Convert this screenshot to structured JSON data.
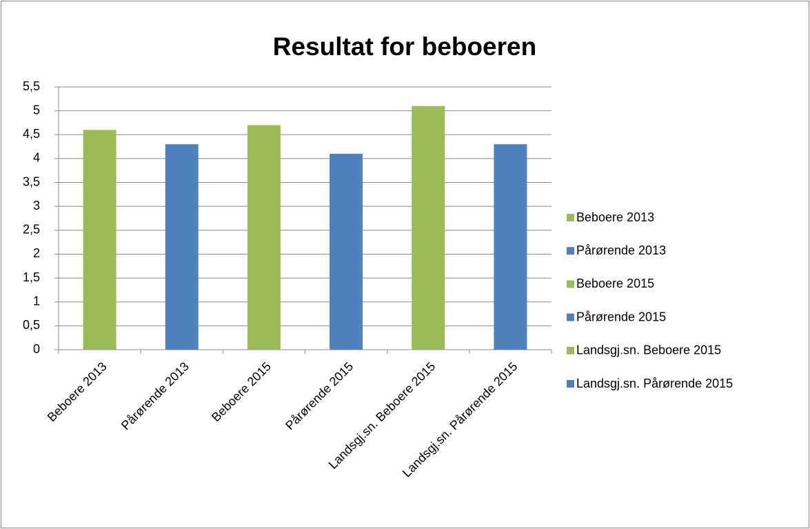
{
  "chart_data": {
    "type": "bar",
    "title": "Resultat for beboeren",
    "categories": [
      "Beboere 2013",
      "Pårørende 2013",
      "Beboere 2015",
      "Pårørende 2015",
      "Landsgj.sn. Beboere 2015",
      "Landsgj.sn. Pårørende 2015"
    ],
    "values": [
      4.6,
      4.3,
      4.7,
      4.1,
      5.1,
      4.3
    ],
    "colors": [
      "#9bbb59",
      "#4f81bd",
      "#9bbb59",
      "#4f81bd",
      "#9bbb59",
      "#4f81bd"
    ],
    "ylim": [
      0,
      5.5
    ],
    "yticks": [
      0,
      {
        "value": 0.5,
        "label": "0,5"
      },
      1,
      {
        "value": 1.5,
        "label": "1,5"
      },
      2,
      {
        "value": 2.5,
        "label": "2,5"
      },
      3,
      {
        "value": 3.5,
        "label": "3,5"
      },
      4,
      {
        "value": 4.5,
        "label": "4,5"
      },
      5,
      {
        "value": 5.5,
        "label": "5,5"
      }
    ],
    "grid": true,
    "legend": "right"
  }
}
